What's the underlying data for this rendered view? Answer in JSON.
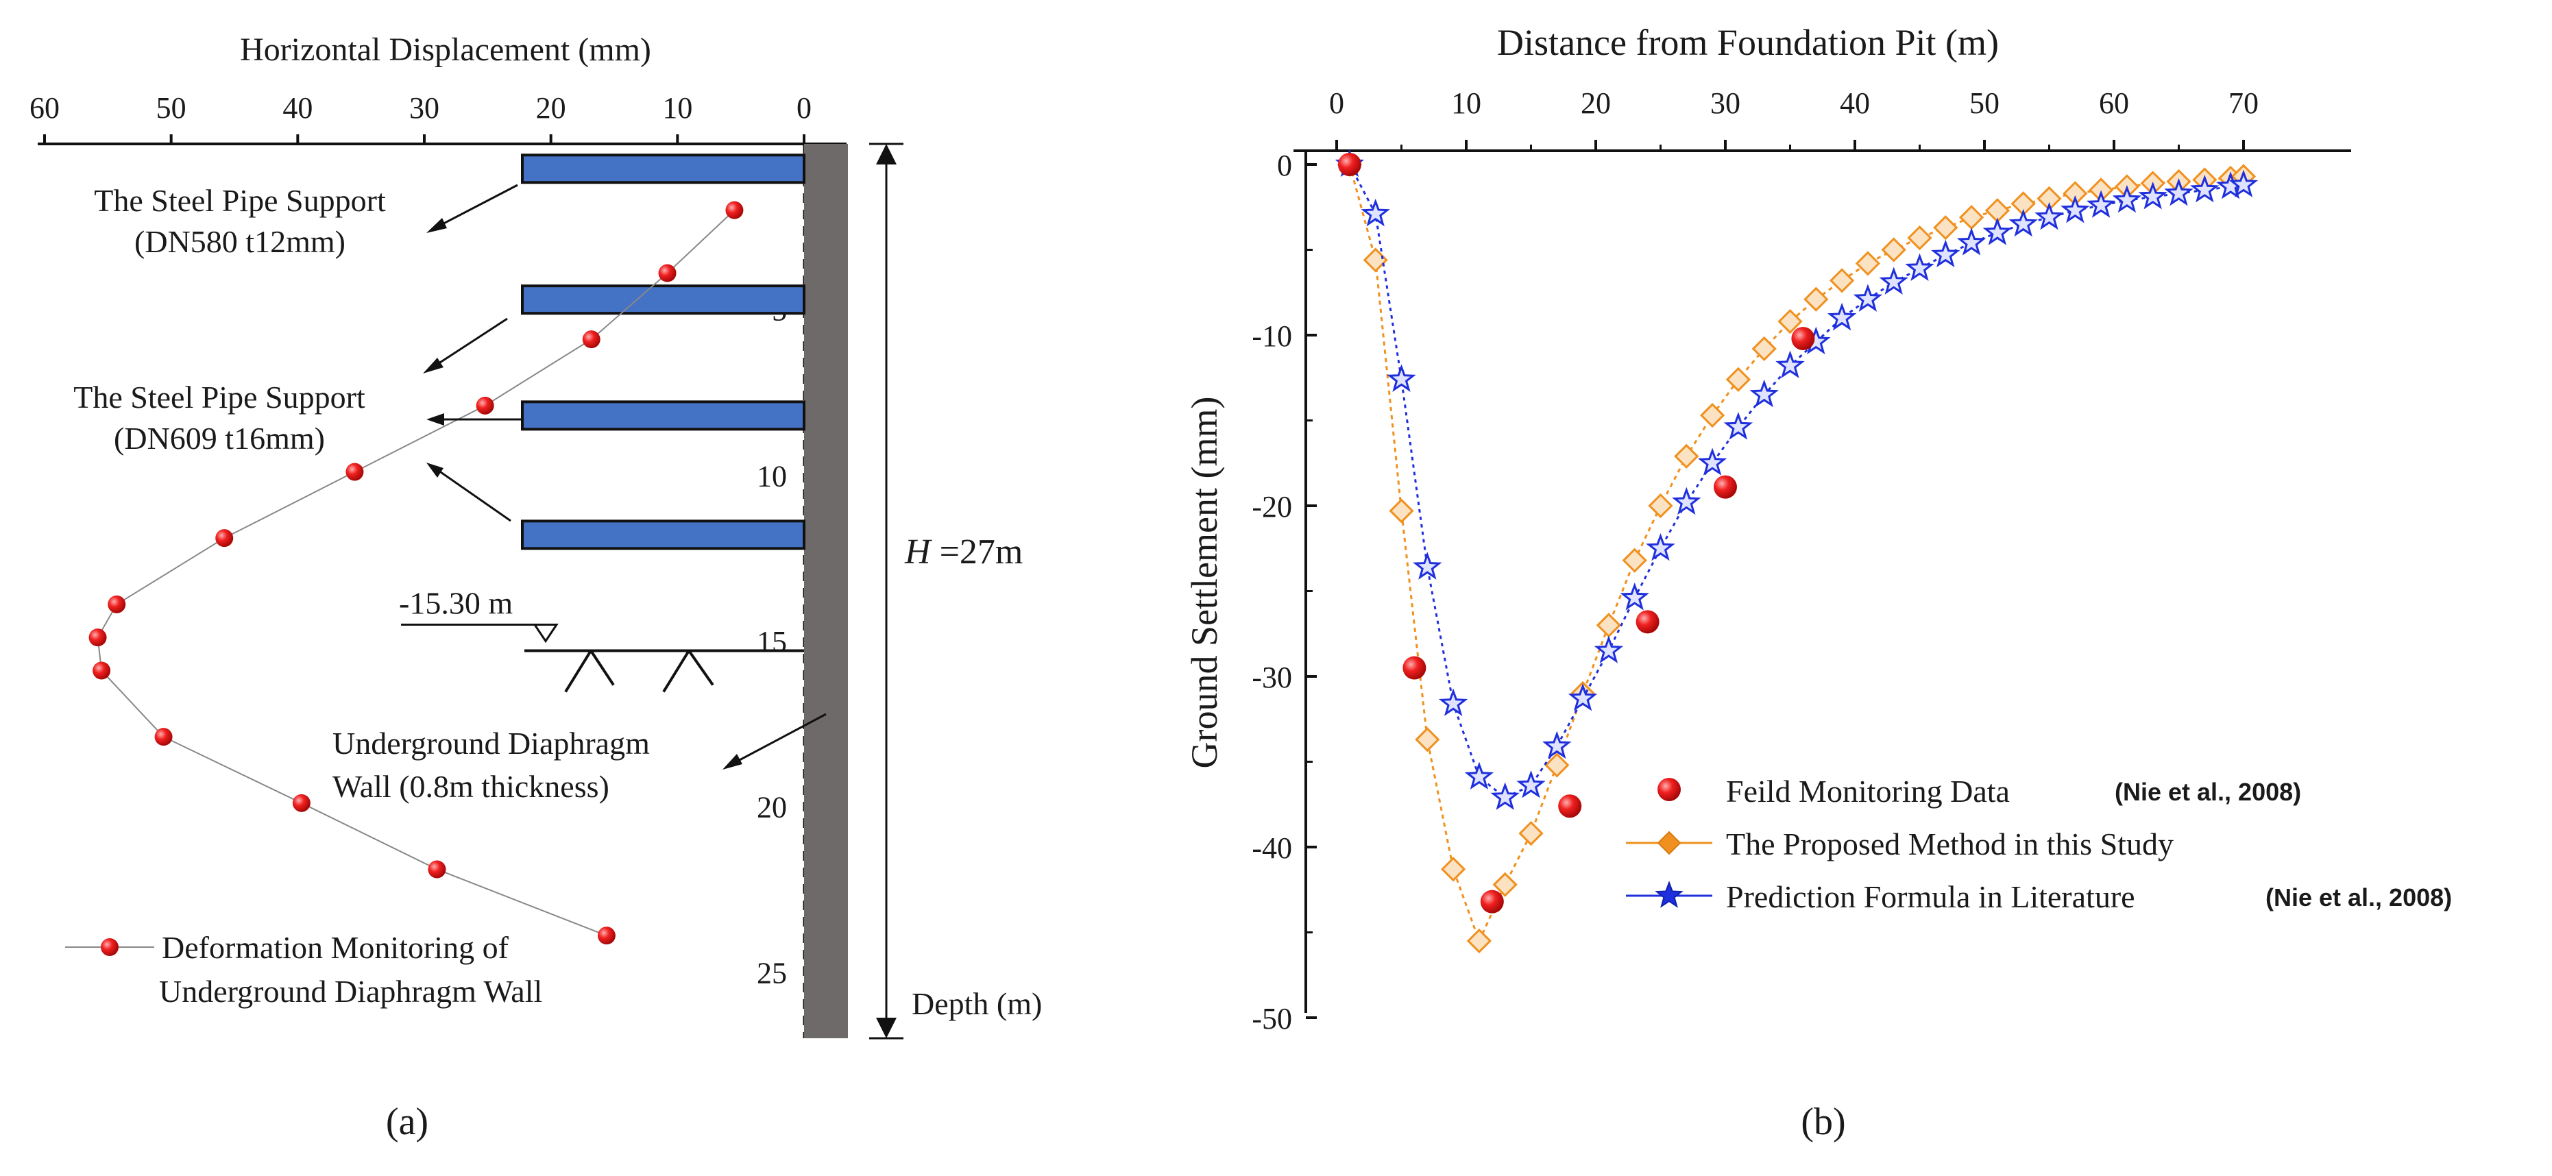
{
  "chart_data": [
    {
      "panel_label": "(a)",
      "type": "scatter",
      "title": "",
      "xlabel": "Horizontal Displacement (mm)",
      "ylabel": "Depth (m)",
      "x_ticks": [
        "60",
        "50",
        "40",
        "30",
        "20",
        "10",
        "0"
      ],
      "y_ticks": [
        "5",
        "10",
        "15",
        "20",
        "25"
      ],
      "xlim": [
        60,
        0
      ],
      "ylim": [
        0,
        27
      ],
      "series": [
        {
          "name": "Deformation Monitoring of Underground Diaphragm Wall",
          "name_line1": "Deformation Monitoring of",
          "name_line2": "Underground Diaphragm Wall",
          "color": "#e8141c",
          "x": [
            5.5,
            10.8,
            16.8,
            25.2,
            35.5,
            45.8,
            54.3,
            55.8,
            55.5,
            50.6,
            39.7,
            29.0,
            15.6
          ],
          "depth": [
            2.0,
            3.9,
            5.9,
            7.9,
            9.9,
            11.9,
            13.9,
            14.9,
            15.9,
            17.9,
            19.9,
            21.9,
            23.9
          ]
        }
      ],
      "supports": [
        {
          "depth": 0.75
        },
        {
          "depth": 4.7
        },
        {
          "depth": 8.2
        },
        {
          "depth": 11.8
        }
      ],
      "annotations": {
        "support1_line1": "The Steel Pipe Support",
        "support1_line2": "(DN580 t12mm)",
        "support2_line1": "The Steel Pipe Support",
        "support2_line2": "(DN609 t16mm)",
        "excavation_level": "-15.30 m",
        "excavation_depth": 15.3,
        "wall_line1": "Underground Diaphragm",
        "wall_line2": "Wall (0.8m thickness)",
        "height_label_italic": "H",
        "height_label_rest": " =27m",
        "depth_label": "Depth (m)"
      },
      "colors": {
        "support_fill": "#4472c4",
        "wall_fill": "#6e6a69"
      }
    },
    {
      "panel_label": "(b)",
      "type": "line",
      "title": "",
      "xlabel": "Distance from Foundation Pit (m)",
      "ylabel": "Ground Settlement (mm)",
      "x_ticks": [
        0,
        10,
        20,
        30,
        40,
        50,
        60,
        70
      ],
      "y_ticks": [
        0,
        -10,
        -20,
        -30,
        -40,
        -50
      ],
      "xlim": [
        -1,
        75
      ],
      "ylim": [
        -50,
        0
      ],
      "series": [
        {
          "name": "Feild Monitoring Data",
          "citation": "(Nie et al., 2008)",
          "marker": "circle",
          "color": "#e8141c",
          "x": [
            1,
            6,
            12,
            18,
            24,
            30,
            36
          ],
          "y": [
            0,
            -29.5,
            -43.2,
            -37.6,
            -26.8,
            -18.9,
            -10.2
          ]
        },
        {
          "name": "The Proposed Method in this Study",
          "marker": "diamond",
          "color": "#f0901e",
          "x": [
            1,
            3,
            5,
            7,
            9,
            11,
            13,
            15,
            17,
            19,
            21,
            23,
            25,
            27,
            29,
            31,
            33,
            35,
            37,
            39,
            41,
            43,
            45,
            47,
            49,
            51,
            53,
            55,
            57,
            59,
            61,
            63,
            65,
            67,
            69,
            70
          ],
          "y": [
            0,
            -5.6,
            -20.3,
            -33.7,
            -41.3,
            -45.5,
            -42.2,
            -39.2,
            -35.2,
            -31.0,
            -27.0,
            -23.2,
            -20.0,
            -17.1,
            -14.7,
            -12.6,
            -10.8,
            -9.2,
            -7.9,
            -6.8,
            -5.8,
            -5.0,
            -4.3,
            -3.7,
            -3.1,
            -2.7,
            -2.3,
            -2.0,
            -1.7,
            -1.5,
            -1.3,
            -1.1,
            -1.0,
            -0.9,
            -0.8,
            -0.7
          ]
        },
        {
          "name": "Prediction Formula in Literature",
          "citation": "(Nie et al., 2008)",
          "marker": "star",
          "color": "#1f2fdc",
          "x": [
            1,
            3,
            5,
            7,
            9,
            11,
            13,
            15,
            17,
            19,
            21,
            23,
            25,
            27,
            29,
            31,
            33,
            35,
            37,
            39,
            41,
            43,
            45,
            47,
            49,
            51,
            53,
            55,
            57,
            59,
            61,
            63,
            65,
            67,
            69,
            70
          ],
          "y": [
            0,
            -2.9,
            -12.6,
            -23.6,
            -31.6,
            -35.9,
            -37.1,
            -36.4,
            -34.1,
            -31.3,
            -28.5,
            -25.4,
            -22.5,
            -19.8,
            -17.5,
            -15.4,
            -13.5,
            -11.8,
            -10.4,
            -9.0,
            -7.9,
            -6.9,
            -6.1,
            -5.3,
            -4.6,
            -4.0,
            -3.5,
            -3.1,
            -2.7,
            -2.4,
            -2.1,
            -1.9,
            -1.7,
            -1.5,
            -1.3,
            -1.2
          ]
        }
      ]
    }
  ]
}
